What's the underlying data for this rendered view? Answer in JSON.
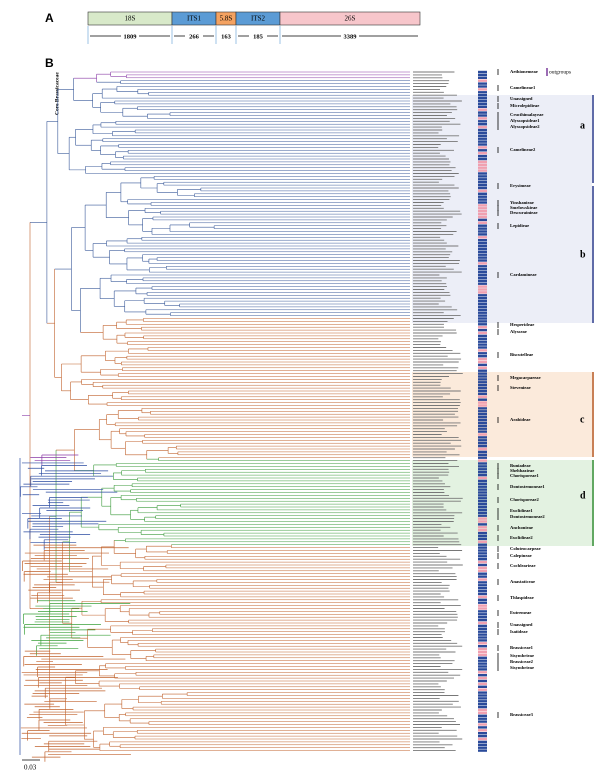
{
  "panel_a": {
    "label": "A",
    "segments": [
      {
        "name": "18S",
        "length": "1809"
      },
      {
        "name": "ITS1",
        "length": "266"
      },
      {
        "name": "5.8S",
        "length": "163"
      },
      {
        "name": "ITS2",
        "length": "185"
      },
      {
        "name": "26S",
        "length": "3389"
      }
    ]
  },
  "panel_b": {
    "label": "B",
    "core_label": "Core Brassicaceae",
    "outgroup_label": "outgroups",
    "scale_label": "0.03",
    "clades": [
      "a",
      "b",
      "c",
      "d"
    ],
    "tribes": [
      "Aethionemeae",
      "Camelineae1",
      "Unassigned",
      "Microlepidieae",
      "Crucihimalayeae",
      "Alyssopsideae1",
      "Alyssopsideae2",
      "Camelineae2",
      "Erysimeae",
      "Yinshanieae",
      "Smelowskieae",
      "Descurainieae",
      "Lepidieae",
      "Cardamineae",
      "Hesperideae",
      "Alysseae",
      "Biscutelleae",
      "Megacarpaeeae",
      "Stevenieae",
      "Arabideae",
      "Buniadeae",
      "Shehbazieae",
      "Chorisporeae1",
      "Dontostemoneae1",
      "Chorisporeae2",
      "Euclidieae1",
      "Dontostemoneae2",
      "Anchonieae",
      "Euclidieae2",
      "Coluteocarpeae",
      "Calepineae",
      "Cochlearieae",
      "Anastaticeae",
      "Thlaspideae",
      "Eutremeae",
      "Unassigned",
      "Isatideae",
      "Brassiceae1",
      "Sisymbrieae",
      "Brassiceae2",
      "Sisymbrieae",
      "Brassiceae3"
    ]
  }
}
